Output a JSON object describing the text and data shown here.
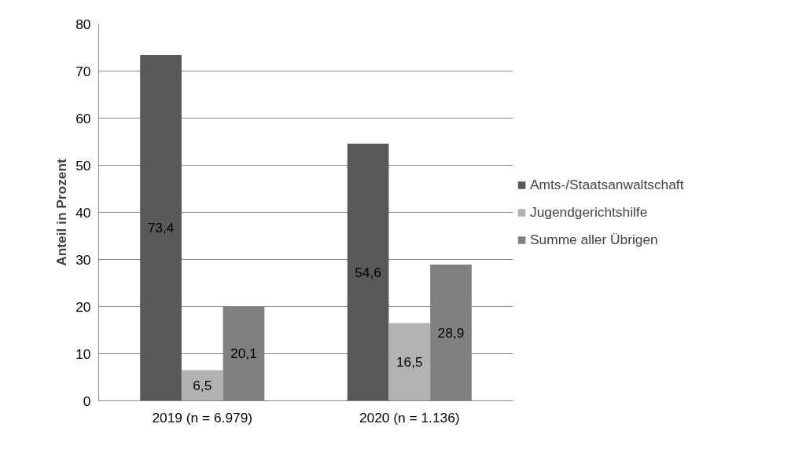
{
  "chart_data": {
    "type": "bar",
    "ylabel": "Anteil in Prozent",
    "categories": [
      "2019 (n = 6.979)",
      "2020 (n = 1.136)"
    ],
    "series": [
      {
        "name": "Amts-/Staatsanwaltschaft",
        "color": "#595959",
        "values": [
          73.4,
          54.6
        ],
        "value_labels": [
          "73,4",
          "54,6"
        ]
      },
      {
        "name": "Jugendgerichtshilfe",
        "color": "#b2b2b2",
        "values": [
          6.5,
          16.5
        ],
        "value_labels": [
          "6,5",
          "16,5"
        ]
      },
      {
        "name": "Summe aller Übrigen",
        "color": "#808080",
        "values": [
          20.1,
          28.9
        ],
        "value_labels": [
          "20,1",
          "28,9"
        ]
      }
    ],
    "ylim": [
      0,
      80
    ],
    "yticks": [
      0,
      10,
      20,
      30,
      40,
      50,
      60,
      70,
      80
    ],
    "grid": "y",
    "legend": "right"
  }
}
